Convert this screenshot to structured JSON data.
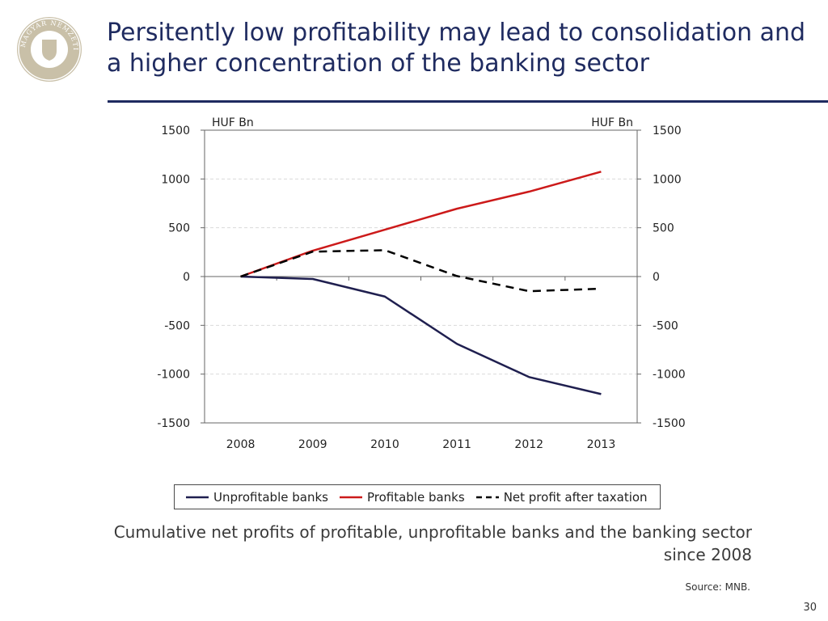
{
  "logo": {
    "text": "MAGYAR NEMZETI BANK"
  },
  "title": "Persitently low profitability may lead to consolidation and a higher concentration of the banking sector",
  "caption": "Cumulative net profits of profitable, unprofitable banks and the banking sector since 2008",
  "source": "Source: MNB.",
  "page_number": "30",
  "colors": {
    "unprofitable": "#1f1f4f",
    "profitable": "#cc1a1a",
    "net": "#000000",
    "title": "#1f2b60"
  },
  "chart_data": {
    "type": "line",
    "title": "",
    "y_left_label": "HUF Bn",
    "y_right_label": "HUF Bn",
    "x": [
      "2008",
      "2009",
      "2010",
      "2011",
      "2012",
      "2013"
    ],
    "ylim": [
      -1500,
      1500
    ],
    "yticks": [
      1500,
      1000,
      500,
      0,
      -500,
      -1000,
      -1500
    ],
    "grid": true,
    "legend_position": "bottom",
    "series": [
      {
        "name": "Unprofitable banks",
        "key": "unprofitable",
        "style": "solid",
        "values": [
          0,
          -25,
          -205,
          -690,
          -1030,
          -1205
        ]
      },
      {
        "name": "Profitable banks",
        "key": "profitable",
        "style": "solid",
        "values": [
          0,
          265,
          480,
          695,
          870,
          1075
        ]
      },
      {
        "name": "Net profit after taxation",
        "key": "net",
        "style": "dashed",
        "values": [
          0,
          255,
          270,
          5,
          -150,
          -125
        ]
      }
    ]
  }
}
